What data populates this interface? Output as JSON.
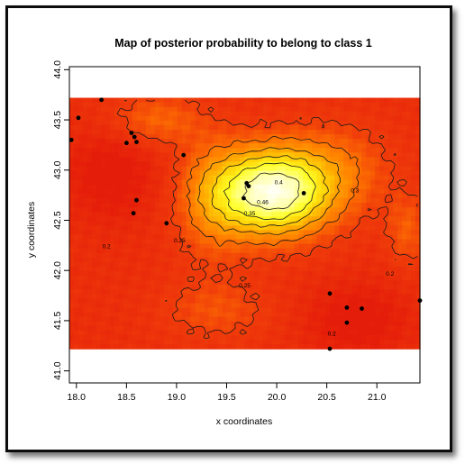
{
  "chart_data": {
    "type": "heatmap",
    "title": "Map of posterior probability to belong to class  1",
    "xlabel": "x coordinates",
    "ylabel": "y coordinates",
    "xlim": [
      17.93,
      21.43
    ],
    "ylim": [
      40.88,
      44.03
    ],
    "map_extent": {
      "x": [
        17.93,
        21.43
      ],
      "y": [
        41.22,
        43.72
      ]
    },
    "xticks": [
      "18.0",
      "18.5",
      "19.0",
      "19.5",
      "20.0",
      "20.5",
      "21.0"
    ],
    "xtick_values": [
      18.0,
      18.5,
      19.0,
      19.5,
      20.0,
      20.5,
      21.0
    ],
    "yticks": [
      "41.0",
      "41.5",
      "42.0",
      "42.5",
      "43.0",
      "43.5",
      "44.0"
    ],
    "ytick_values": [
      41.0,
      41.5,
      42.0,
      42.5,
      43.0,
      43.5,
      44.0
    ],
    "colors": {
      "low": "#e61e0a",
      "mid": "#ff9a00",
      "high": "#ffff20",
      "peak": "#fffff0"
    },
    "probability_peak": {
      "x": 19.95,
      "y": 42.78
    },
    "contour_labels": [
      {
        "text": "0.46",
        "x": 19.86,
        "y": 42.66
      },
      {
        "text": "0.4",
        "x": 20.02,
        "y": 42.86
      },
      {
        "text": "0.35",
        "x": 19.73,
        "y": 42.55
      },
      {
        "text": "0.3",
        "x": 20.78,
        "y": 42.78
      },
      {
        "text": "0.25",
        "x": 19.68,
        "y": 41.83
      },
      {
        "text": "0.25",
        "x": 19.03,
        "y": 42.28
      },
      {
        "text": "0.2",
        "x": 18.3,
        "y": 42.22
      },
      {
        "text": "0.2",
        "x": 21.13,
        "y": 41.95
      },
      {
        "text": "0.2",
        "x": 20.55,
        "y": 41.35
      }
    ],
    "points": [
      {
        "x": 17.95,
        "y": 43.3
      },
      {
        "x": 18.02,
        "y": 43.52
      },
      {
        "x": 18.25,
        "y": 43.7
      },
      {
        "x": 18.5,
        "y": 43.27
      },
      {
        "x": 18.55,
        "y": 43.37
      },
      {
        "x": 18.58,
        "y": 43.33
      },
      {
        "x": 18.6,
        "y": 43.28
      },
      {
        "x": 18.6,
        "y": 42.7
      },
      {
        "x": 18.57,
        "y": 42.57
      },
      {
        "x": 18.9,
        "y": 42.47
      },
      {
        "x": 19.07,
        "y": 43.15
      },
      {
        "x": 19.67,
        "y": 42.72
      },
      {
        "x": 19.7,
        "y": 42.87
      },
      {
        "x": 19.72,
        "y": 42.84
      },
      {
        "x": 20.27,
        "y": 42.77
      },
      {
        "x": 20.53,
        "y": 41.77
      },
      {
        "x": 20.7,
        "y": 41.63
      },
      {
        "x": 20.7,
        "y": 41.48
      },
      {
        "x": 20.85,
        "y": 41.62
      },
      {
        "x": 21.43,
        "y": 41.7
      },
      {
        "x": 20.53,
        "y": 41.22
      }
    ]
  }
}
